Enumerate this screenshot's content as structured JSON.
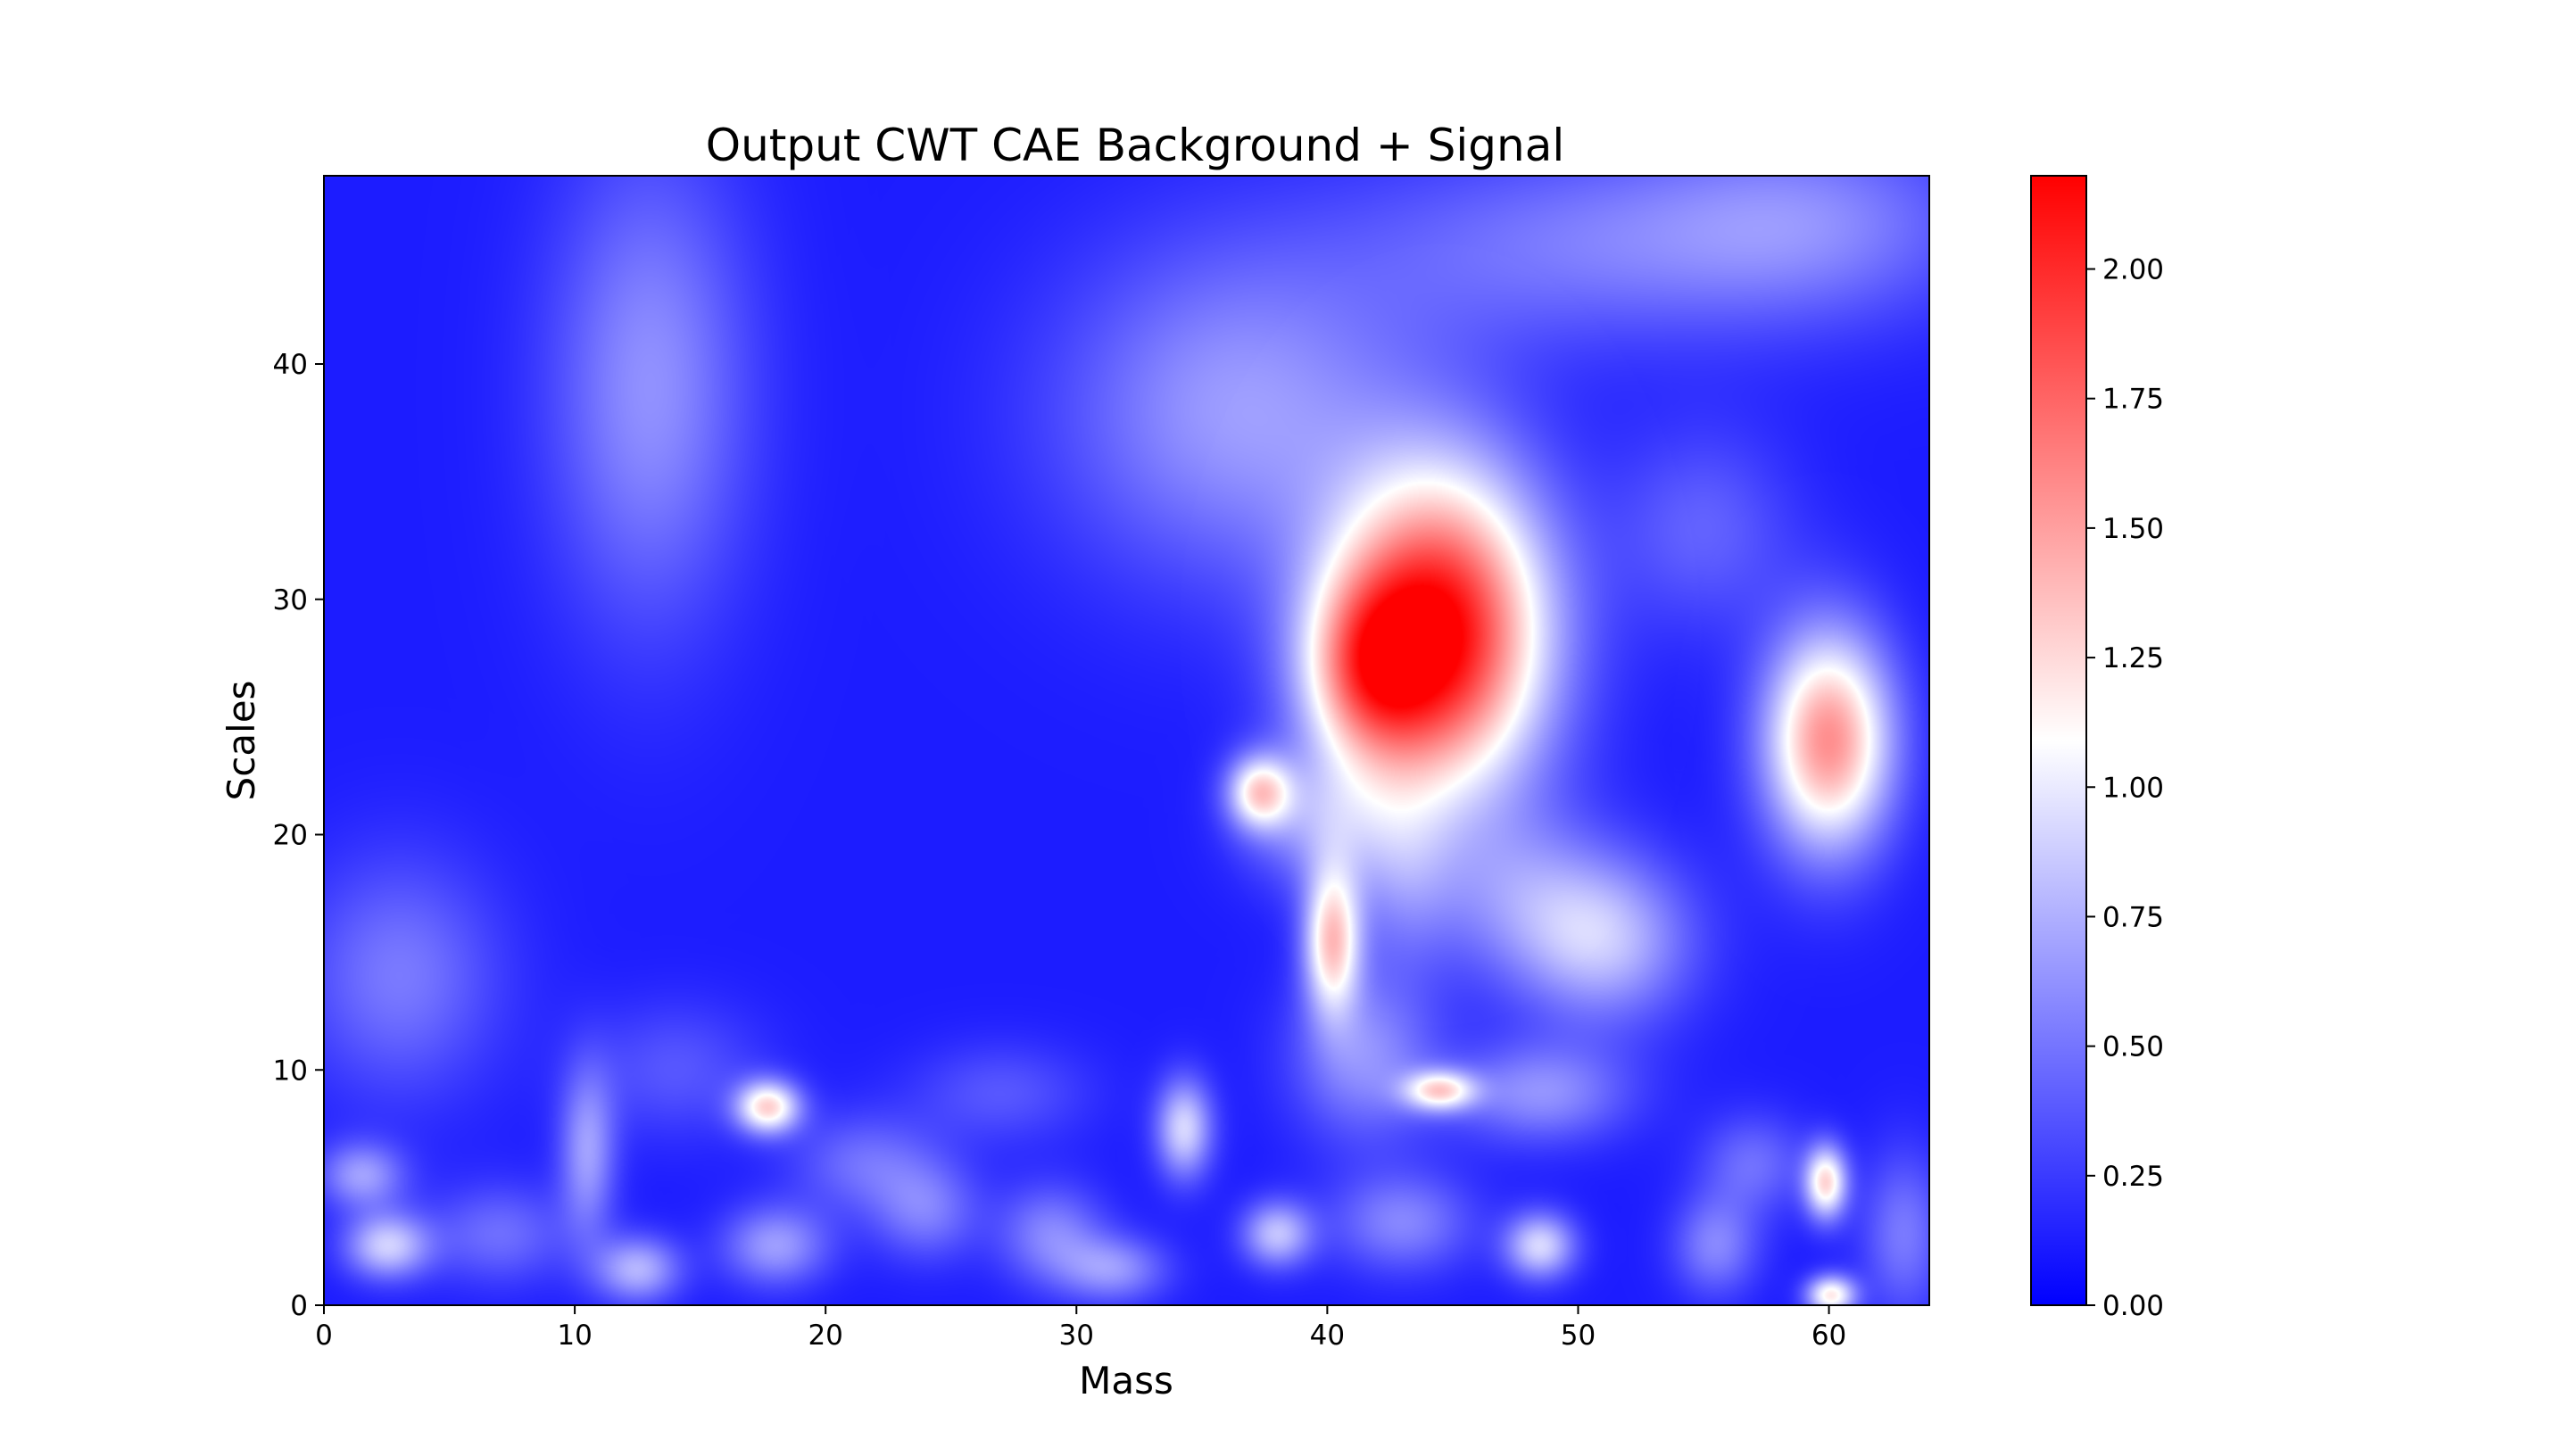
{
  "chart_data": {
    "type": "heatmap",
    "title": "Output CWT CAE Background + Signal",
    "xlabel": "Mass",
    "ylabel": "Scales",
    "xlim": [
      0,
      64
    ],
    "ylim": [
      0,
      48
    ],
    "xticks": [
      0,
      10,
      20,
      30,
      40,
      50,
      60
    ],
    "xtick_labels": [
      "0",
      "10",
      "20",
      "30",
      "40",
      "50",
      "60"
    ],
    "yticks": [
      0,
      10,
      20,
      30,
      40
    ],
    "ytick_labels": [
      "0",
      "10",
      "20",
      "30",
      "40"
    ],
    "colormap": "bwr",
    "colormap_colors": [
      "#0000ff",
      "#ffffff",
      "#ff0000"
    ],
    "colorbar": {
      "range": [
        0.0,
        2.18
      ],
      "ticks": [
        0.0,
        0.25,
        0.5,
        0.75,
        1.0,
        1.25,
        1.5,
        1.75,
        2.0
      ],
      "tick_labels": [
        "0.00",
        "0.25",
        "0.50",
        "0.75",
        "1.00",
        "1.25",
        "1.50",
        "1.75",
        "2.00"
      ]
    },
    "baseline_value": 0.12,
    "blobs": [
      {
        "x": 44.5,
        "y": 28.5,
        "sx": 3.0,
        "sy": 4.8,
        "v": 2.05
      },
      {
        "x": 41.5,
        "y": 27.0,
        "sx": 1.8,
        "sy": 2.8,
        "v": 0.9
      },
      {
        "x": 60.0,
        "y": 24.0,
        "sx": 1.8,
        "sy": 3.3,
        "v": 1.45
      },
      {
        "x": 40.2,
        "y": 15.5,
        "sx": 0.8,
        "sy": 2.2,
        "v": 1.15
      },
      {
        "x": 37.3,
        "y": 21.8,
        "sx": 0.9,
        "sy": 1.1,
        "v": 1.0
      },
      {
        "x": 17.7,
        "y": 8.4,
        "sx": 0.9,
        "sy": 0.8,
        "v": 1.1
      },
      {
        "x": 44.5,
        "y": 9.1,
        "sx": 1.0,
        "sy": 0.6,
        "v": 0.95
      },
      {
        "x": 59.9,
        "y": 5.2,
        "sx": 0.6,
        "sy": 1.1,
        "v": 1.1
      },
      {
        "x": 60.1,
        "y": 0.4,
        "sx": 0.7,
        "sy": 0.6,
        "v": 1.05
      },
      {
        "x": 13.0,
        "y": 39.0,
        "sx": 2.8,
        "sy": 7.0,
        "v": 0.5
      },
      {
        "x": 36.5,
        "y": 38.0,
        "sx": 5.0,
        "sy": 5.0,
        "v": 0.55
      },
      {
        "x": 49.0,
        "y": 45.0,
        "sx": 6.0,
        "sy": 3.0,
        "v": 0.35
      },
      {
        "x": 59.0,
        "y": 46.0,
        "sx": 5.0,
        "sy": 3.0,
        "v": 0.45
      },
      {
        "x": 55.0,
        "y": 33.0,
        "sx": 2.5,
        "sy": 3.0,
        "v": 0.3
      },
      {
        "x": 3.0,
        "y": 14.0,
        "sx": 2.8,
        "sy": 3.5,
        "v": 0.4
      },
      {
        "x": 51.0,
        "y": 15.5,
        "sx": 2.5,
        "sy": 2.5,
        "v": 0.7
      },
      {
        "x": 47.5,
        "y": 17.5,
        "sx": 2.5,
        "sy": 2.5,
        "v": 0.35
      },
      {
        "x": 43.0,
        "y": 18.5,
        "sx": 1.5,
        "sy": 3.0,
        "v": 0.35
      },
      {
        "x": 41.5,
        "y": 10.5,
        "sx": 2.0,
        "sy": 2.5,
        "v": 0.5
      },
      {
        "x": 48.5,
        "y": 9.0,
        "sx": 2.5,
        "sy": 1.5,
        "v": 0.5
      },
      {
        "x": 34.3,
        "y": 7.5,
        "sx": 0.8,
        "sy": 1.5,
        "v": 0.8
      },
      {
        "x": 39.5,
        "y": 20.5,
        "sx": 2.0,
        "sy": 2.0,
        "v": 0.45
      },
      {
        "x": 2.5,
        "y": 2.5,
        "sx": 1.2,
        "sy": 1.0,
        "v": 0.75
      },
      {
        "x": 1.5,
        "y": 5.5,
        "sx": 1.2,
        "sy": 1.0,
        "v": 0.55
      },
      {
        "x": 10.5,
        "y": 6.5,
        "sx": 0.8,
        "sy": 2.5,
        "v": 0.55
      },
      {
        "x": 12.5,
        "y": 1.5,
        "sx": 1.2,
        "sy": 1.0,
        "v": 0.65
      },
      {
        "x": 18.0,
        "y": 2.5,
        "sx": 1.5,
        "sy": 1.2,
        "v": 0.55
      },
      {
        "x": 24.0,
        "y": 4.0,
        "sx": 1.5,
        "sy": 1.5,
        "v": 0.4
      },
      {
        "x": 29.0,
        "y": 3.0,
        "sx": 1.5,
        "sy": 1.5,
        "v": 0.45
      },
      {
        "x": 31.5,
        "y": 1.5,
        "sx": 1.5,
        "sy": 1.0,
        "v": 0.5
      },
      {
        "x": 38.0,
        "y": 3.0,
        "sx": 1.0,
        "sy": 1.0,
        "v": 0.7
      },
      {
        "x": 48.5,
        "y": 2.5,
        "sx": 1.0,
        "sy": 1.0,
        "v": 0.8
      },
      {
        "x": 43.0,
        "y": 3.5,
        "sx": 2.0,
        "sy": 1.5,
        "v": 0.45
      },
      {
        "x": 55.5,
        "y": 2.5,
        "sx": 1.2,
        "sy": 1.5,
        "v": 0.45
      },
      {
        "x": 57.0,
        "y": 6.0,
        "sx": 1.5,
        "sy": 1.5,
        "v": 0.35
      },
      {
        "x": 7.0,
        "y": 3.0,
        "sx": 2.0,
        "sy": 1.5,
        "v": 0.35
      },
      {
        "x": 21.5,
        "y": 6.0,
        "sx": 2.0,
        "sy": 1.5,
        "v": 0.35
      },
      {
        "x": 14.0,
        "y": 10.0,
        "sx": 2.5,
        "sy": 2.0,
        "v": 0.25
      },
      {
        "x": 27.0,
        "y": 9.0,
        "sx": 2.5,
        "sy": 1.5,
        "v": 0.25
      },
      {
        "x": 63.0,
        "y": 3.0,
        "sx": 1.2,
        "sy": 2.5,
        "v": 0.4
      }
    ]
  }
}
